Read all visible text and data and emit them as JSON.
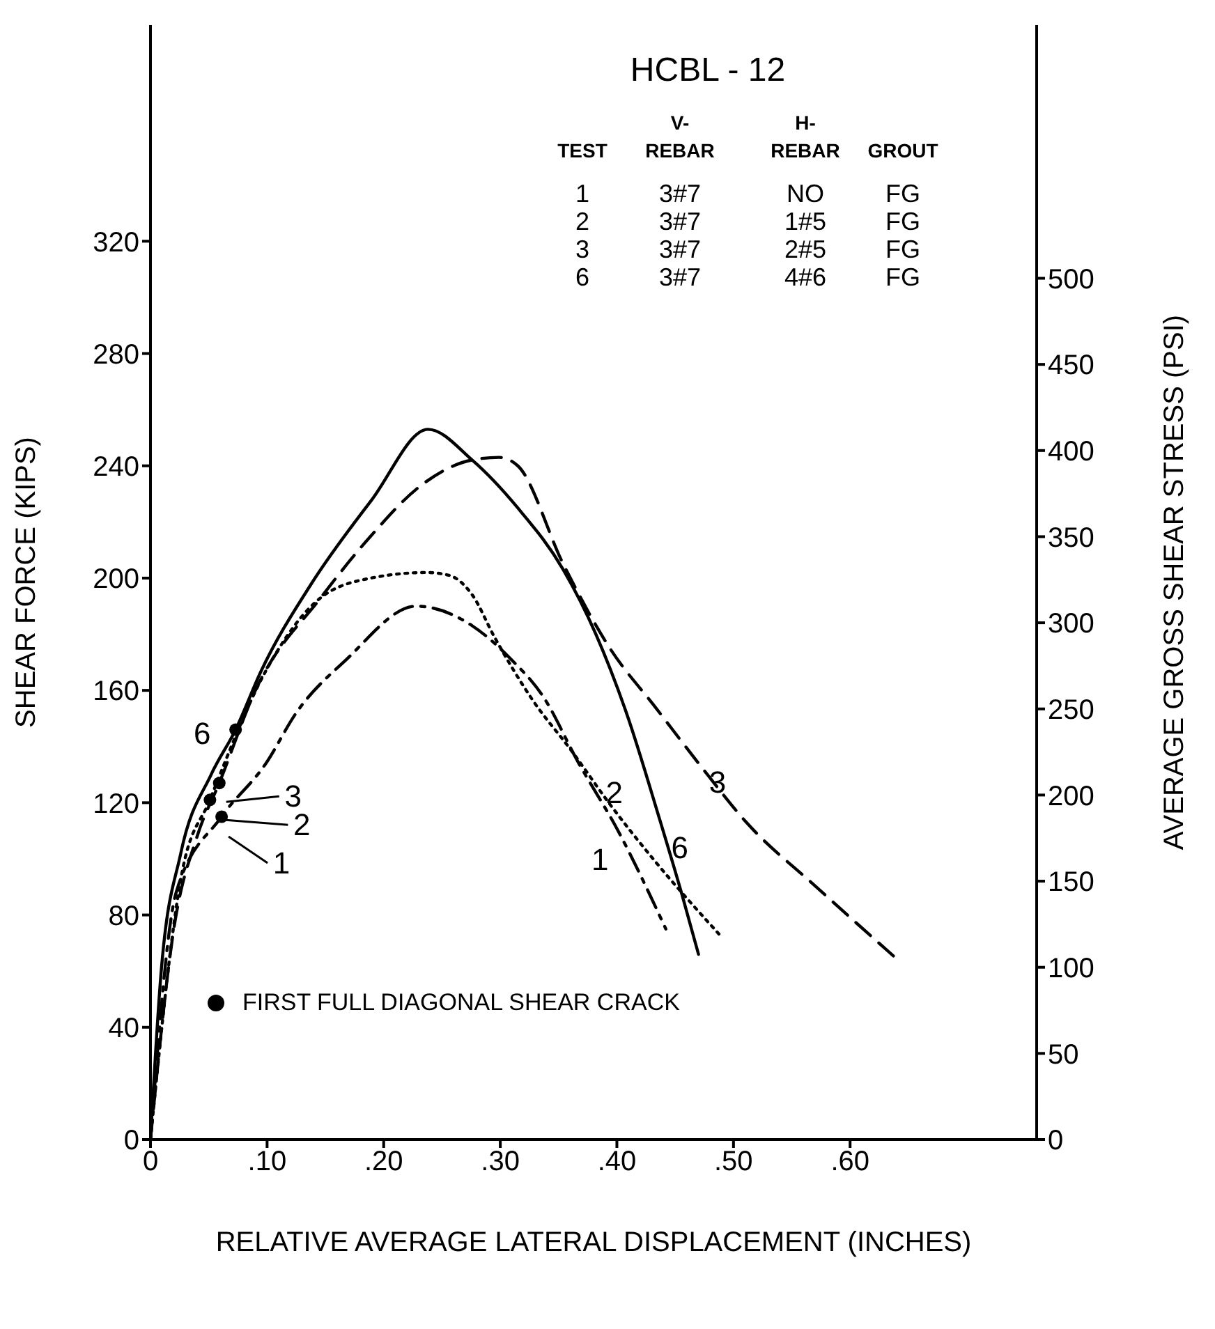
{
  "chart_data": {
    "type": "line",
    "title": "HCBL - 12",
    "xlabel": "RELATIVE AVERAGE LATERAL DISPLACEMENT (INCHES)",
    "ylabel": "SHEAR FORCE (KIPS)",
    "y2label": "AVERAGE GROSS SHEAR STRESS (PSI)",
    "xlim": [
      0,
      0.76
    ],
    "xticks": [
      {
        "value": 0,
        "label": "0"
      },
      {
        "value": 0.1,
        "label": ".10"
      },
      {
        "value": 0.2,
        "label": ".20"
      },
      {
        "value": 0.3,
        "label": ".30"
      },
      {
        "value": 0.4,
        "label": ".40"
      },
      {
        "value": 0.5,
        "label": ".50"
      },
      {
        "value": 0.6,
        "label": ".60"
      }
    ],
    "ylim": [
      0,
      397
    ],
    "yticks": [
      0,
      40,
      80,
      120,
      160,
      200,
      240,
      280,
      320
    ],
    "y2lim": [
      0,
      647
    ],
    "y2ticks": [
      0,
      50,
      100,
      150,
      200,
      250,
      300,
      350,
      400,
      450,
      500
    ],
    "grid": false,
    "legend": "bottom left",
    "series": [
      {
        "color": "#000000",
        "line_style": "dashdot",
        "x": [
          0,
          0.022,
          0.061,
          0.099,
          0.125,
          0.168,
          0.228,
          0.276,
          0.307,
          0.338,
          0.366,
          0.401,
          0.442
        ],
        "values": [
          0,
          88,
          115,
          134,
          152,
          171,
          190,
          183,
          172,
          157,
          135,
          110,
          75
        ]
      },
      {
        "color": "#000000",
        "line_style": "dotted",
        "x": [
          0,
          0.027,
          0.051,
          0.099,
          0.146,
          0.189,
          0.237,
          0.256,
          0.276,
          0.295,
          0.327,
          0.362,
          0.393,
          0.433,
          0.488
        ],
        "values": [
          0,
          95,
          121,
          167,
          193,
          200,
          202,
          201,
          194,
          179,
          157,
          138,
          120,
          99,
          73
        ]
      },
      {
        "color": "#000000",
        "line_style": "dashed",
        "x": [
          0,
          0.02,
          0.04,
          0.059,
          0.09,
          0.146,
          0.189,
          0.232,
          0.275,
          0.299,
          0.315,
          0.354,
          0.394,
          0.433,
          0.472,
          0.511,
          0.571,
          0.641
        ],
        "values": [
          0,
          75,
          108,
          127,
          160,
          193,
          215,
          233,
          242,
          243,
          240,
          205,
          175,
          154,
          133,
          113,
          90,
          64
        ]
      },
      {
        "color": "#000000",
        "line_style": "solid",
        "x": [
          0,
          0.009,
          0.026,
          0.052,
          0.073,
          0.095,
          0.138,
          0.19,
          0.238,
          0.276,
          0.315,
          0.354,
          0.382,
          0.409,
          0.436,
          0.456,
          0.47
        ],
        "values": [
          0,
          59,
          102,
          130,
          146,
          167,
          198,
          228,
          253,
          242,
          225,
          203,
          180,
          151,
          115,
          87,
          66
        ]
      },
      {
        "type": "scatter",
        "name": "FIRST FULL DIAGONAL SHEAR CRACK",
        "color": "#000000",
        "marker": "circle",
        "x": [
          0.073,
          0.059,
          0.051,
          0.061
        ],
        "values": [
          146,
          127,
          121,
          115
        ]
      }
    ],
    "annotations": [
      "V-",
      "H-",
      "TEST",
      "REBAR",
      "REBAR",
      "GROUT",
      "1",
      "3#7",
      "NO",
      "FG",
      "2",
      "3#7",
      "1#5",
      "FG",
      "3",
      "3#7",
      "2#5",
      "FG",
      "6",
      "3#7",
      "4#6",
      "FG",
      {
        "text": "6",
        "x": 0.073,
        "y": 146
      },
      {
        "text": "3",
        "x": 0.059,
        "y": 127
      },
      {
        "text": "2",
        "x": 0.051,
        "y": 121
      },
      {
        "text": "1",
        "x": 0.061,
        "y": 115
      },
      {
        "text": "1",
        "x": 0.401,
        "y": 110
      },
      {
        "text": "2",
        "x": 0.393,
        "y": 120
      },
      {
        "text": "3",
        "x": 0.472,
        "y": 133
      },
      {
        "text": "6",
        "x": 0.436,
        "y": 115
      }
    ]
  }
}
